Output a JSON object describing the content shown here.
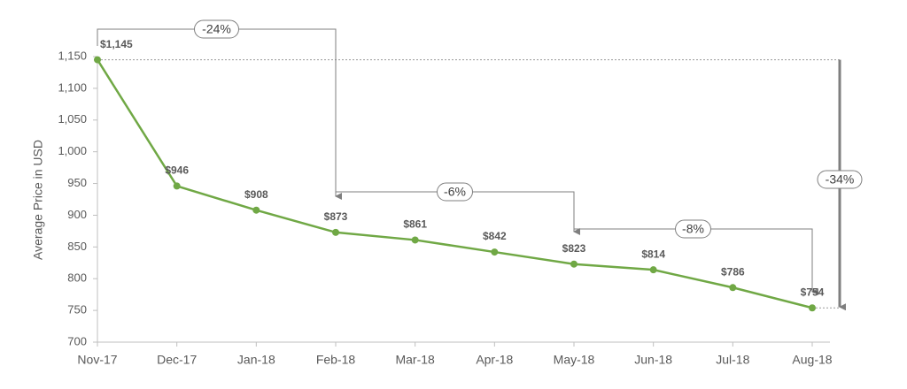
{
  "chart_data": {
    "type": "line",
    "y_label": "Average Price in USD",
    "categories": [
      "Nov-17",
      "Dec-17",
      "Jan-18",
      "Feb-18",
      "Mar-18",
      "Apr-18",
      "May-18",
      "Jun-18",
      "Jul-18",
      "Aug-18"
    ],
    "series": [
      {
        "name": "Average Price",
        "color": "#70a845",
        "values": [
          1145,
          946,
          908,
          873,
          861,
          842,
          823,
          814,
          786,
          754
        ],
        "value_labels": [
          "$1,145",
          "$946",
          "$908",
          "$873",
          "$861",
          "$842",
          "$823",
          "$814",
          "$786",
          "$754"
        ]
      }
    ],
    "ylim": [
      700,
      1150
    ],
    "yticks": [
      700,
      750,
      800,
      850,
      900,
      950,
      {
        "value": 1000,
        "label": "1,000"
      },
      {
        "value": 1050,
        "label": "1,050"
      },
      {
        "value": 1100,
        "label": "1,100"
      },
      {
        "value": 1150,
        "label": "1,150"
      }
    ],
    "annotations": [
      "-24%",
      "-6%",
      "-8%",
      "-34%"
    ]
  }
}
